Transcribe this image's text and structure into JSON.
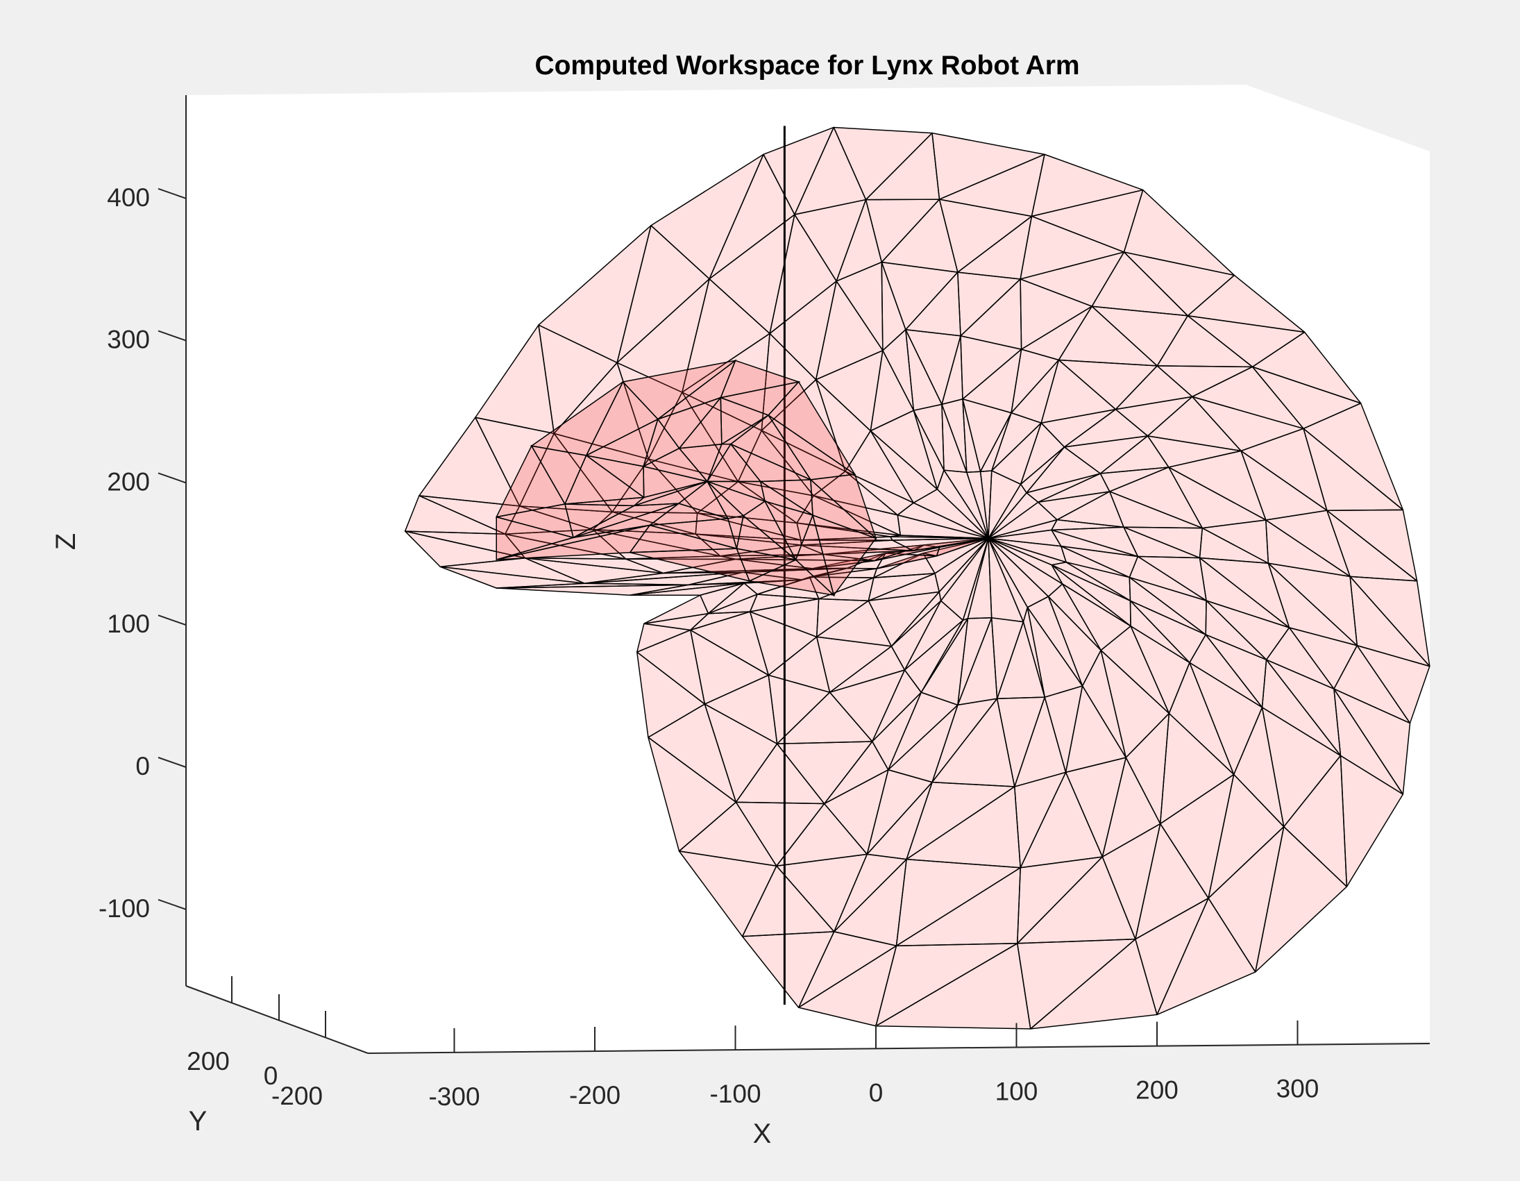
{
  "chart_data": {
    "type": "surface",
    "title": "Computed Workspace for Lynx Robot Arm",
    "xlabel": "X",
    "ylabel": "Y",
    "zlabel": "Z",
    "x_ticks": [
      -300,
      -200,
      -100,
      0,
      100,
      200,
      300
    ],
    "y_ticks": [
      200,
      0,
      -200
    ],
    "z_ticks": [
      400,
      300,
      200,
      100,
      0,
      -100
    ],
    "xlim": [
      -360,
      395
    ],
    "zlim": [
      -155,
      475
    ],
    "grid": false,
    "legend": "none",
    "colors": {
      "surface": "#ff5a5a",
      "edges": "#000000",
      "background": "#ffffff",
      "figure": "#f0f0f0"
    },
    "surface_outline": [
      [
        -325,
        190
      ],
      [
        -285,
        245
      ],
      [
        -240,
        310
      ],
      [
        -160,
        380
      ],
      [
        -80,
        430
      ],
      [
        -30,
        449
      ],
      [
        40,
        445
      ],
      [
        120,
        430
      ],
      [
        190,
        405
      ],
      [
        255,
        345
      ],
      [
        305,
        305
      ],
      [
        345,
        255
      ],
      [
        375,
        180
      ],
      [
        385,
        130
      ],
      [
        394,
        70
      ],
      [
        380,
        30
      ],
      [
        375,
        -20
      ],
      [
        335,
        -85
      ],
      [
        270,
        -145
      ],
      [
        200,
        -175
      ],
      [
        110,
        -185
      ],
      [
        0,
        -183
      ],
      [
        -55,
        -170
      ],
      [
        -95,
        -120
      ],
      [
        -140,
        -60
      ],
      [
        -162,
        20
      ],
      [
        -170,
        80
      ],
      [
        -165,
        100
      ],
      [
        -125,
        120
      ],
      [
        -175,
        120
      ],
      [
        -270,
        125
      ],
      [
        -310,
        140
      ],
      [
        -335,
        165
      ]
    ],
    "inner_surface_outline": [
      [
        -270,
        175
      ],
      [
        -245,
        225
      ],
      [
        -180,
        270
      ],
      [
        -100,
        285
      ],
      [
        -55,
        270
      ],
      [
        -15,
        205
      ],
      [
        0,
        160
      ],
      [
        -30,
        120
      ],
      [
        -90,
        130
      ],
      [
        -175,
        150
      ],
      [
        -270,
        145
      ]
    ]
  }
}
